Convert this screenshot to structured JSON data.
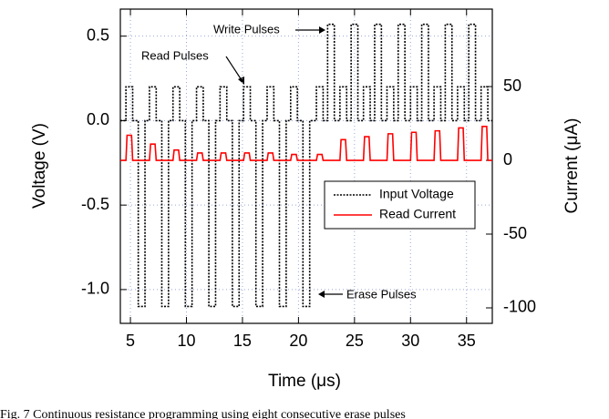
{
  "chart_data": {
    "type": "line",
    "xlabel": "Time (μs)",
    "ylabel": "Voltage (V)",
    "y2label": "Current (μA)",
    "caption": "Fig. 7 Continuous resistance programming using eight consecutive erase pulses",
    "annotations": [
      "Write Pulses",
      "Read Pulses",
      "Erase Pulses"
    ],
    "xlim": [
      4.1,
      37.3
    ],
    "xticks": [
      5,
      10,
      15,
      20,
      25,
      30,
      35
    ],
    "ylim": [
      -1.2,
      0.66
    ],
    "yticks": [
      0.5,
      {
        "value": 0,
        "label": "0.0"
      },
      -0.5,
      {
        "value": -1,
        "label": "-1.0"
      }
    ],
    "y2lim": [
      -110.5,
      102.5
    ],
    "y2ticks": [
      50,
      0,
      -50,
      -100
    ],
    "grid": true,
    "legend": "lower right",
    "series": [
      {
        "name": "Input Voltage",
        "color": "#000000",
        "dashed": true,
        "x": [
          4.1,
          4.6,
          4.6,
          5.2,
          5.2,
          5.7,
          5.7,
          6.3,
          6.3,
          6.7,
          6.7,
          7.3,
          7.3,
          7.8,
          7.8,
          8.4,
          8.4,
          8.8,
          8.8,
          9.4,
          9.4,
          9.9,
          9.9,
          10.5,
          10.5,
          10.9,
          10.9,
          11.5,
          11.5,
          12.0,
          12.0,
          12.6,
          12.6,
          13.0,
          13.0,
          13.6,
          13.6,
          14.1,
          14.1,
          14.7,
          14.7,
          15.1,
          15.1,
          15.7,
          15.7,
          16.2,
          16.2,
          16.8,
          16.8,
          17.2,
          17.2,
          17.8,
          17.8,
          18.3,
          18.3,
          18.9,
          18.9,
          19.3,
          19.3,
          19.9,
          19.9,
          20.4,
          20.4,
          21.0,
          21.0,
          21.6,
          21.6,
          22.2,
          22.2,
          22.6,
          22.6,
          23.2,
          23.2,
          23.7,
          23.7,
          24.3,
          24.3,
          24.7,
          24.7,
          25.3,
          25.3,
          25.8,
          25.8,
          26.4,
          26.4,
          26.8,
          26.8,
          27.4,
          27.4,
          27.9,
          27.9,
          28.5,
          28.5,
          28.9,
          28.9,
          29.5,
          29.5,
          30.0,
          30.0,
          30.6,
          30.6,
          31.0,
          31.0,
          31.6,
          31.6,
          32.1,
          32.1,
          32.7,
          32.7,
          33.1,
          33.1,
          33.7,
          33.7,
          34.2,
          34.2,
          34.8,
          34.8,
          35.2,
          35.2,
          35.8,
          35.8,
          36.3,
          36.3,
          36.9,
          36.9,
          37.3
        ],
        "values": [
          0,
          0,
          0.2,
          0.2,
          0,
          0,
          -1.1,
          -1.1,
          0,
          0,
          0.2,
          0.2,
          0,
          0,
          -1.1,
          -1.1,
          0,
          0,
          0.2,
          0.2,
          0,
          0,
          -1.1,
          -1.1,
          0,
          0,
          0.2,
          0.2,
          0,
          0,
          -1.1,
          -1.1,
          0,
          0,
          0.2,
          0.2,
          0,
          0,
          -1.1,
          -1.1,
          0,
          0,
          0.2,
          0.2,
          0,
          0,
          -1.1,
          -1.1,
          0,
          0,
          0.2,
          0.2,
          0,
          0,
          -1.1,
          -1.1,
          0,
          0,
          0.2,
          0.2,
          0,
          0,
          -1.1,
          -1.1,
          0,
          0,
          0.2,
          0.2,
          0,
          0,
          0.57,
          0.57,
          0,
          0,
          0.2,
          0.2,
          0,
          0,
          0.57,
          0.57,
          0,
          0,
          0.2,
          0.2,
          0,
          0,
          0.57,
          0.57,
          0,
          0,
          0.2,
          0.2,
          0,
          0,
          0.57,
          0.57,
          0,
          0,
          0.2,
          0.2,
          0,
          0,
          0.57,
          0.57,
          0,
          0,
          0.2,
          0.2,
          0,
          0,
          0.57,
          0.57,
          0,
          0,
          0.2,
          0.2,
          0,
          0,
          0.57,
          0.57,
          0,
          0,
          0.2,
          0.2,
          0,
          0
        ]
      },
      {
        "name": "Read Current",
        "color": "#ff0000",
        "axis": "y2",
        "x": [
          4.1,
          4.6,
          4.7,
          5.1,
          5.2,
          6.7,
          6.8,
          7.2,
          7.3,
          8.8,
          8.9,
          9.3,
          9.4,
          10.9,
          11.0,
          11.4,
          11.5,
          13.0,
          13.1,
          13.5,
          13.6,
          15.1,
          15.2,
          15.6,
          15.7,
          17.2,
          17.3,
          17.7,
          17.8,
          19.3,
          19.4,
          19.8,
          19.9,
          21.6,
          21.7,
          22.1,
          22.2,
          23.7,
          23.8,
          24.2,
          24.3,
          25.8,
          25.9,
          26.3,
          26.4,
          27.9,
          28.0,
          28.4,
          28.5,
          30.0,
          30.1,
          30.5,
          30.6,
          32.1,
          32.2,
          32.6,
          32.7,
          34.2,
          34.3,
          34.7,
          34.8,
          36.3,
          36.4,
          36.8,
          36.9,
          37.3
        ],
        "values": [
          0,
          0,
          17,
          17,
          0,
          0,
          11,
          11,
          0,
          0,
          7,
          7,
          0,
          0,
          5,
          5,
          0,
          0,
          5,
          5,
          0,
          0,
          5,
          5,
          0,
          0,
          5,
          5,
          0,
          0,
          4,
          4,
          0,
          0,
          4,
          4,
          0,
          0,
          14,
          14,
          0,
          0,
          16,
          16,
          0,
          0,
          18,
          18,
          0,
          0,
          19,
          19,
          0,
          0,
          20,
          20,
          0,
          0,
          22,
          22,
          0,
          0,
          23,
          23,
          0,
          0
        ]
      }
    ]
  }
}
